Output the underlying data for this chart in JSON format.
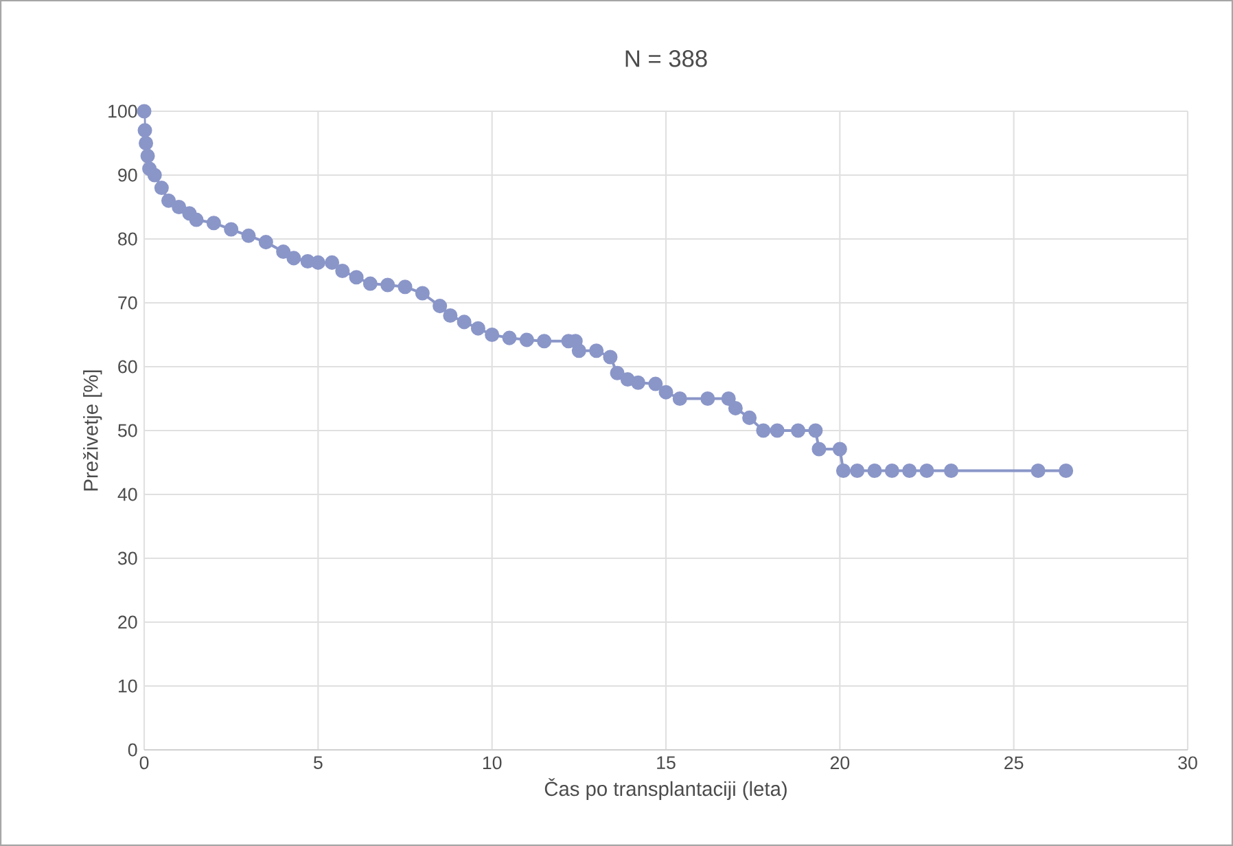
{
  "chart_data": {
    "type": "line",
    "title": "N = 388",
    "xlabel": "Čas po transplantaciji (leta)",
    "ylabel": "Preživetje [%]",
    "x": [
      0,
      0.02,
      0.05,
      0.1,
      0.15,
      0.3,
      0.5,
      0.7,
      1.0,
      1.3,
      1.5,
      2.0,
      2.5,
      3.0,
      3.5,
      4.0,
      4.3,
      4.7,
      5.0,
      5.4,
      5.7,
      6.1,
      6.5,
      7.0,
      7.5,
      8.0,
      8.5,
      8.8,
      9.2,
      9.6,
      10.0,
      10.5,
      11.0,
      11.5,
      12.2,
      12.4,
      12.5,
      13.0,
      13.4,
      13.6,
      13.9,
      14.2,
      14.7,
      15.0,
      15.4,
      16.2,
      16.8,
      17.0,
      17.4,
      17.8,
      18.2,
      18.8,
      19.3,
      19.4,
      20.0,
      20.1,
      20.5,
      21.0,
      21.5,
      22.0,
      22.5,
      23.2,
      25.7,
      26.5
    ],
    "values": [
      100,
      97,
      95,
      93,
      91,
      90,
      88,
      86,
      85,
      84,
      83,
      82.5,
      81.5,
      80.5,
      79.5,
      78,
      77,
      76.5,
      76.3,
      76.3,
      75,
      74,
      73,
      72.8,
      72.5,
      71.5,
      69.5,
      68,
      67,
      66,
      65,
      64.5,
      64.2,
      64,
      64,
      64,
      62.5,
      62.5,
      61.5,
      59,
      58,
      57.5,
      57.3,
      56,
      55,
      55,
      55,
      53.5,
      52,
      50,
      50,
      50,
      50,
      47.1,
      47.1,
      43.7,
      43.7,
      43.7,
      43.7,
      43.7,
      43.7,
      43.7,
      43.7,
      43.7
    ],
    "color": "#8a96c8",
    "marker": "circle",
    "line_style": "solid",
    "grid": true,
    "xlim": [
      0,
      30
    ],
    "xticks": [
      0,
      5,
      10,
      15,
      20,
      25,
      30
    ],
    "ylim": [
      0,
      100
    ],
    "yticks": [
      0,
      10,
      20,
      30,
      40,
      50,
      60,
      70,
      80,
      90,
      100
    ]
  }
}
